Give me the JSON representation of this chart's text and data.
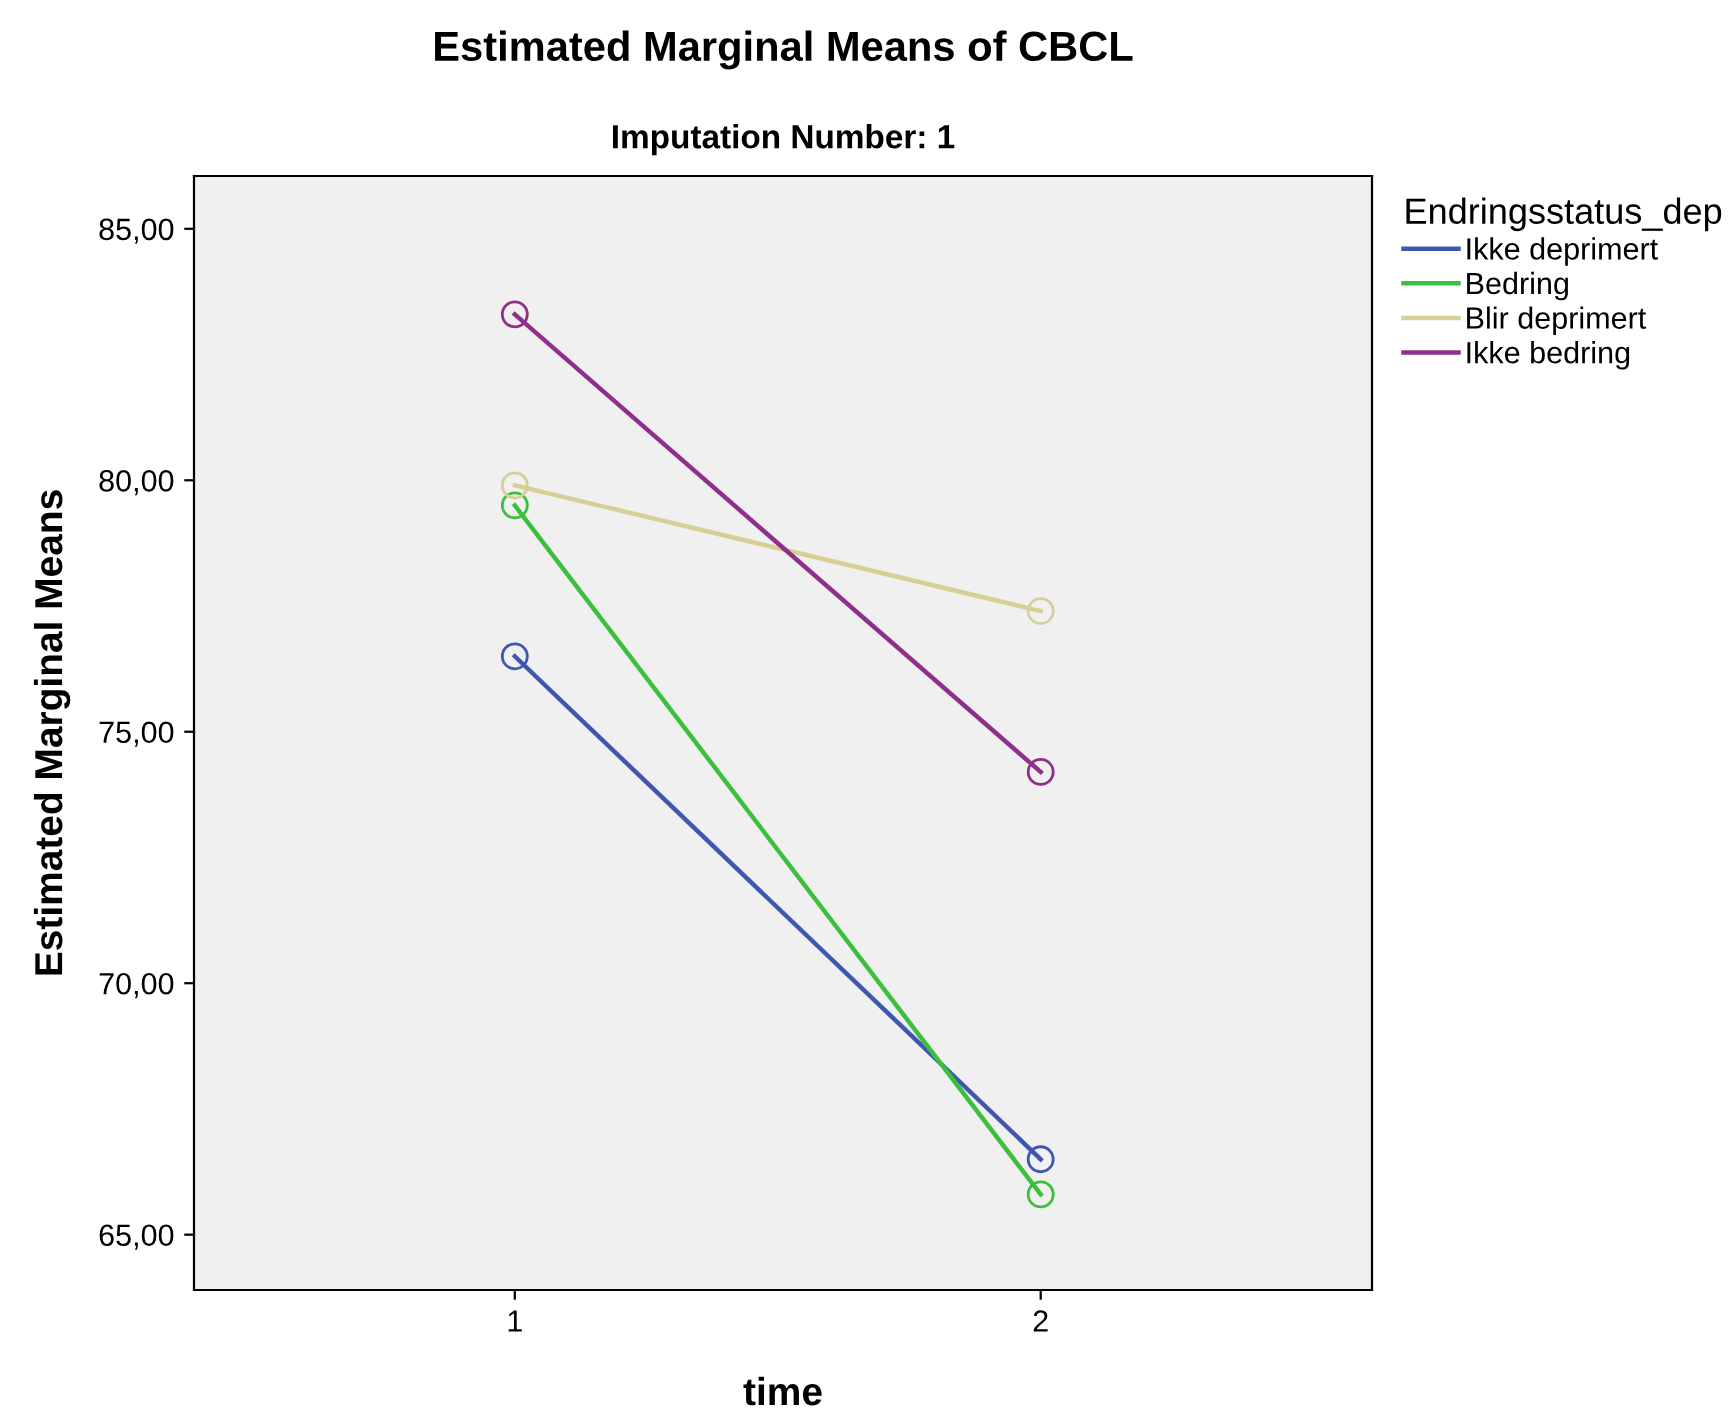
{
  "chart_data": {
    "type": "line",
    "title": "Estimated Marginal Means of CBCL",
    "subtitle": "Imputation Number: 1",
    "xlabel": "time",
    "ylabel": "Estimated Marginal Means",
    "legend_title": "Endringsstatus_dep",
    "categories": [
      "1",
      "2"
    ],
    "series": [
      {
        "name": "Ikke deprimert",
        "color": "#3f57b0",
        "values": [
          76.5,
          66.5
        ]
      },
      {
        "name": "Bedring",
        "color": "#3cbf3c",
        "values": [
          79.5,
          65.8
        ]
      },
      {
        "name": "Blir deprimert",
        "color": "#d6cf96",
        "values": [
          79.9,
          77.4
        ]
      },
      {
        "name": "Ikke bedring",
        "color": "#8e2f8a",
        "values": [
          83.3,
          74.2
        ]
      }
    ],
    "ylim": [
      63.9,
      86.05
    ],
    "yticks": [
      {
        "value": 65,
        "label": "65,00"
      },
      {
        "value": 70,
        "label": "70,00"
      },
      {
        "value": 75,
        "label": "75,00"
      },
      {
        "value": 80,
        "label": "80,00"
      },
      {
        "value": 85,
        "label": "85,00"
      }
    ],
    "marker": "circle",
    "line_style": "solid",
    "grid": false,
    "legend": "top right"
  }
}
